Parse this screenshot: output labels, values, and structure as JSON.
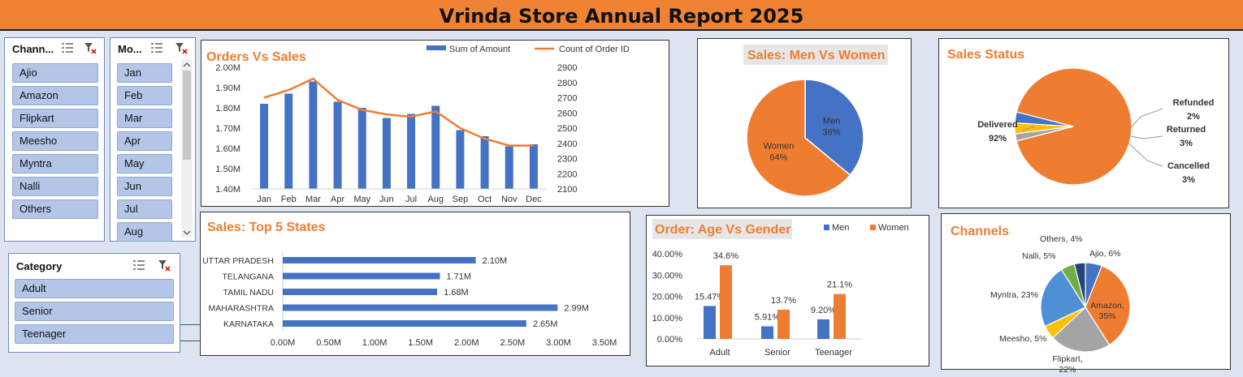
{
  "title": "Vrinda Store Annual Report 2025",
  "slicers": {
    "channel": {
      "title": "Chann...",
      "items": [
        "Ajio",
        "Amazon",
        "Flipkart",
        "Meesho",
        "Myntra",
        "Nalli",
        "Others"
      ]
    },
    "month": {
      "title": "Mo...",
      "items": [
        "Jan",
        "Feb",
        "Mar",
        "Apr",
        "May",
        "Jun",
        "Jul",
        "Aug"
      ]
    },
    "category": {
      "title": "Category",
      "items": [
        "Adult",
        "Senior",
        "Teenager"
      ]
    }
  },
  "icons": {
    "multiselect": "multi-select-icon",
    "clear_filter": "clear-filter-icon"
  },
  "colors": {
    "accent": "#ef7d31",
    "blue": "#4472c4",
    "banner": "#ef8233",
    "grey": "#a5a5a5",
    "yellow": "#ffc000",
    "green": "#70ad47",
    "navy": "#264478"
  },
  "chart_data": [
    {
      "id": "orders_vs_sales",
      "type": "bar+line",
      "title": "Orders Vs Sales",
      "categories": [
        "Jan",
        "Feb",
        "Mar",
        "Apr",
        "May",
        "Jun",
        "Jul",
        "Aug",
        "Sep",
        "Oct",
        "Nov",
        "Dec"
      ],
      "series": [
        {
          "name": "Sum of Amount",
          "type": "bar",
          "axis": "left",
          "values": [
            1.82,
            1.87,
            1.93,
            1.83,
            1.8,
            1.75,
            1.77,
            1.81,
            1.69,
            1.66,
            1.61,
            1.62
          ]
        },
        {
          "name": "Count of Order ID",
          "type": "line",
          "axis": "right",
          "values": [
            2700,
            2750,
            2825,
            2685,
            2620,
            2590,
            2575,
            2610,
            2500,
            2430,
            2385,
            2385
          ]
        }
      ],
      "left_axis": {
        "ticks": [
          "1.40M",
          "1.50M",
          "1.60M",
          "1.70M",
          "1.80M",
          "1.90M",
          "2.00M"
        ],
        "range": [
          1.4,
          2.0
        ]
      },
      "right_axis": {
        "ticks": [
          "2100",
          "2200",
          "2300",
          "2400",
          "2500",
          "2600",
          "2700",
          "2800",
          "2900"
        ],
        "range": [
          2100,
          2900
        ]
      },
      "legend": "top"
    },
    {
      "id": "men_vs_women",
      "type": "pie",
      "title": "Sales: Men Vs Women",
      "slices": [
        {
          "label": "Men",
          "value": 36,
          "display": "36%"
        },
        {
          "label": "Women",
          "value": 64,
          "display": "64%"
        }
      ]
    },
    {
      "id": "sales_status",
      "type": "pie",
      "title": "Sales Status",
      "slices": [
        {
          "label": "Delivered",
          "value": 92,
          "display": "92%"
        },
        {
          "label": "Refunded",
          "value": 2,
          "display": "2%"
        },
        {
          "label": "Returned",
          "value": 3,
          "display": "3%"
        },
        {
          "label": "Cancelled",
          "value": 3,
          "display": "3%"
        }
      ]
    },
    {
      "id": "top5_states",
      "type": "bar",
      "orientation": "horizontal",
      "title": "Sales: Top 5 States",
      "categories": [
        "UTTAR PRADESH",
        "TELANGANA",
        "TAMIL NADU",
        "MAHARASHTRA",
        "KARNATAKA"
      ],
      "values": [
        2.1,
        1.71,
        1.68,
        2.99,
        2.65
      ],
      "labels": [
        "2.10M",
        "1.71M",
        "1.68M",
        "2.99M",
        "2.65M"
      ],
      "x_ticks": [
        "0.00M",
        "0.50M",
        "1.00M",
        "1.50M",
        "2.00M",
        "2.50M",
        "3.00M",
        "3.50M"
      ],
      "xlim": [
        0,
        3.5
      ]
    },
    {
      "id": "age_vs_gender",
      "type": "bar",
      "title": "Order: Age Vs Gender",
      "categories": [
        "Adult",
        "Senior",
        "Teenager"
      ],
      "series": [
        {
          "name": "Men",
          "values": [
            15.47,
            5.91,
            9.2
          ],
          "labels": [
            "15.47%",
            "5.91%",
            "9.20%"
          ]
        },
        {
          "name": "Women",
          "values": [
            34.6,
            13.7,
            21.1
          ],
          "labels": [
            "34.6%",
            "13.7%",
            "21.1%"
          ]
        }
      ],
      "y_ticks": [
        "0.00%",
        "10.00%",
        "20.00%",
        "30.00%",
        "40.00%"
      ],
      "ylim": [
        0,
        40
      ],
      "legend": "top-right"
    },
    {
      "id": "channels",
      "type": "pie",
      "title": "Channels",
      "slices": [
        {
          "label": "Ajio",
          "value": 6,
          "display": "Ajio, 6%"
        },
        {
          "label": "Amazon",
          "value": 35,
          "display": "Amazon, 35%"
        },
        {
          "label": "Flipkart",
          "value": 22,
          "display": "Flipkart, 22%"
        },
        {
          "label": "Meesho",
          "value": 5,
          "display": "Meesho, 5%"
        },
        {
          "label": "Myntra",
          "value": 23,
          "display": "Myntra, 23%"
        },
        {
          "label": "Nalli",
          "value": 5,
          "display": "Nalli, 5%"
        },
        {
          "label": "Others",
          "value": 4,
          "display": "Others, 4%"
        }
      ]
    }
  ]
}
